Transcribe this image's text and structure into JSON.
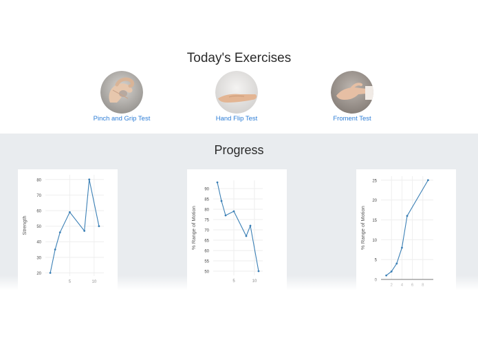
{
  "exercises": {
    "title": "Today's Exercises",
    "items": [
      {
        "label": "Pinch and Grip Test",
        "image": "hand-pinch-photo"
      },
      {
        "label": "Hand Flip Test",
        "image": "hand-open-palm-photo"
      },
      {
        "label": "Froment Test",
        "image": "hand-froment-photo"
      }
    ]
  },
  "progress": {
    "title": "Progress"
  },
  "colors": {
    "link": "#2b7cd6",
    "line": "#3a7fb5",
    "section_bg": "#e9ecef"
  },
  "chart_data": [
    {
      "type": "line",
      "title": "",
      "xlabel": "",
      "ylabel": "Strength",
      "x": [
        1,
        2,
        3,
        5,
        8,
        9,
        11
      ],
      "y": [
        20,
        35,
        46,
        59,
        47,
        80,
        50
      ],
      "xlim": [
        0,
        12
      ],
      "ylim": [
        18,
        83
      ],
      "xticks": [
        5,
        10
      ],
      "yticks": [
        20,
        30,
        40,
        50,
        60,
        70,
        80
      ],
      "grid": true
    },
    {
      "type": "line",
      "title": "",
      "xlabel": "",
      "ylabel": "% Range of Motion",
      "x": [
        1,
        2,
        3,
        5,
        8,
        9,
        11
      ],
      "y": [
        93,
        84,
        77,
        79,
        67,
        72,
        50
      ],
      "xlim": [
        0,
        12
      ],
      "ylim": [
        48,
        94
      ],
      "xticks": [
        5,
        10
      ],
      "yticks": [
        50,
        55,
        60,
        65,
        70,
        75,
        80,
        85,
        90
      ],
      "grid": true
    },
    {
      "type": "line",
      "title": "",
      "xlabel": "",
      "ylabel": "% Range of Motion",
      "x": [
        1,
        2,
        3,
        4,
        5,
        9
      ],
      "y": [
        1,
        2,
        4,
        8,
        16,
        25
      ],
      "xlim": [
        0,
        10
      ],
      "ylim": [
        0,
        26
      ],
      "xticks": [
        2,
        4,
        6,
        8
      ],
      "yticks": [
        0,
        5,
        10,
        15,
        20,
        25
      ],
      "grid": true
    }
  ]
}
